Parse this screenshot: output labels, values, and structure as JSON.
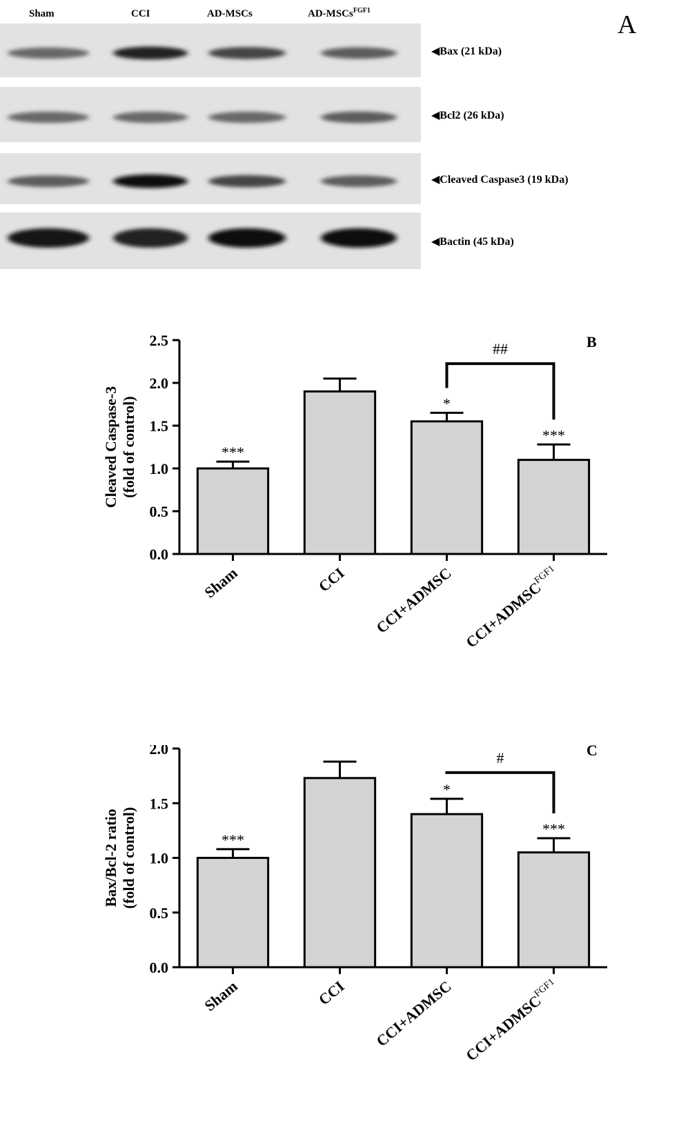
{
  "panel_a": {
    "letter": "A",
    "lanes": [
      "Sham",
      "CCI",
      "AD-MSCs",
      "AD-MSCs"
    ],
    "lane4_superscript": "FGF1",
    "bands": [
      {
        "label": "Bax (21 kDa)",
        "intensity": [
          0.55,
          0.85,
          0.7,
          0.6
        ]
      },
      {
        "label": "Bcl2 (26 kDa)",
        "intensity": [
          0.55,
          0.55,
          0.55,
          0.6
        ]
      },
      {
        "label": "Cleaved Caspase3 (19 kDa)",
        "intensity": [
          0.6,
          0.95,
          0.7,
          0.6
        ]
      },
      {
        "label": "Bactin  (45 kDa)",
        "intensity": [
          0.9,
          0.85,
          0.95,
          0.95
        ]
      }
    ],
    "arrow_glyph": "◀"
  },
  "chart_data": [
    {
      "type": "bar",
      "panel": "B",
      "categories": [
        "Sham",
        "CCI",
        "CCI+ADMSC",
        "CCI+ADMSC"
      ],
      "last_category_superscript": "FGF1",
      "values": [
        1.0,
        1.9,
        1.55,
        1.1
      ],
      "errors": [
        0.08,
        0.15,
        0.1,
        0.18
      ],
      "annotations": [
        "***",
        "",
        "*",
        "***"
      ],
      "bracket": {
        "from": 2,
        "to": 3,
        "label": "##"
      },
      "ylabel_line1": "Cleaved Caspase-3",
      "ylabel_line2": "(fold of control)",
      "ylim": [
        0,
        2.5
      ],
      "yticks": [
        "0.0",
        "0.5",
        "1.0",
        "1.5",
        "2.0",
        "2.5"
      ],
      "bar_color": "#d3d3d3"
    },
    {
      "type": "bar",
      "panel": "C",
      "categories": [
        "Sham",
        "CCI",
        "CCI+ADMSC",
        "CCI+ADMSC"
      ],
      "last_category_superscript": "FGF1",
      "values": [
        1.0,
        1.73,
        1.4,
        1.05
      ],
      "errors": [
        0.08,
        0.15,
        0.14,
        0.13
      ],
      "annotations": [
        "***",
        "",
        "*",
        "***"
      ],
      "bracket": {
        "from": 2,
        "to": 3,
        "label": "#"
      },
      "ylabel_line1": "Bax/Bcl-2 ratio",
      "ylabel_line2": "(fold of control)",
      "ylim": [
        0,
        2.0
      ],
      "yticks": [
        "0.0",
        "0.5",
        "1.0",
        "1.5",
        "2.0"
      ],
      "bar_color": "#d3d3d3"
    }
  ]
}
